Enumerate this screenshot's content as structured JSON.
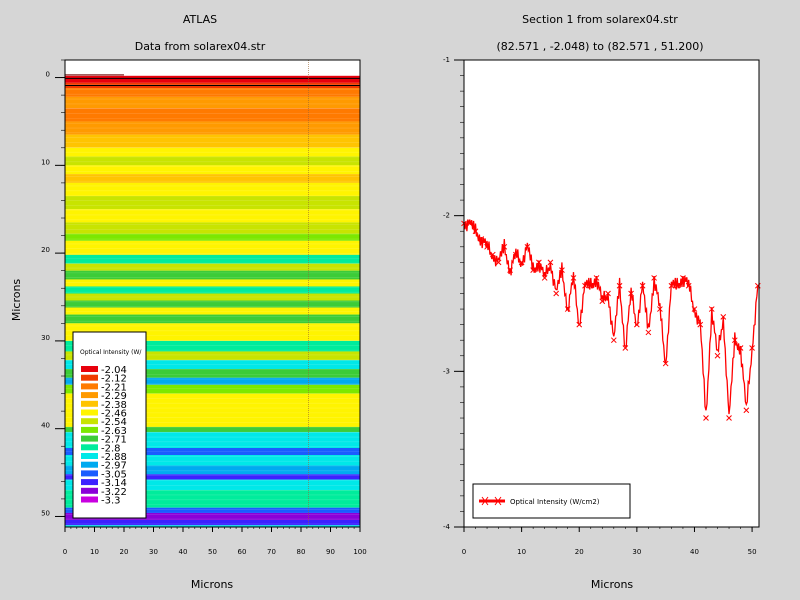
{
  "chart_data": [
    {
      "type": "heatmap",
      "title": "ATLAS",
      "subtitle": "Data from solarex04.str",
      "xlabel": "Microns",
      "ylabel": "Microns",
      "xlim": [
        0,
        100
      ],
      "ylim": [
        51.2,
        -2.0
      ],
      "x_ticks": [
        "0",
        "10",
        "20",
        "30",
        "40",
        "50",
        "60",
        "70",
        "80",
        "90",
        "100"
      ],
      "y_ticks": [
        "0",
        "10",
        "20",
        "30",
        "40",
        "50"
      ],
      "legend": {
        "title": "Optical Intensity (W/",
        "placement": "lower-left",
        "levels": [
          "-2.04",
          "-2.12",
          "-2.21",
          "-2.29",
          "-2.38",
          "-2.46",
          "-2.54",
          "-2.63",
          "-2.71",
          "-2.8",
          "-2.88",
          "-2.97",
          "-3.05",
          "-3.14",
          "-3.22",
          "-3.3"
        ],
        "colors": [
          "#e8000c",
          "#f03a00",
          "#ff7a00",
          "#ff9a00",
          "#ffc400",
          "#fff400",
          "#c8e400",
          "#7ce800",
          "#3ccc38",
          "#00ec9c",
          "#00e8e8",
          "#00aaf0",
          "#1a5cff",
          "#3c20ff",
          "#8a00d8",
          "#c800e0"
        ]
      },
      "bands": [
        {
          "y0": -0.2,
          "y1": 0.6,
          "level": 0
        },
        {
          "y0": 0.6,
          "y1": 1.2,
          "level": 1
        },
        {
          "y0": 1.2,
          "y1": 2.2,
          "level": 2
        },
        {
          "y0": 2.2,
          "y1": 3.5,
          "level": 3
        },
        {
          "y0": 3.5,
          "y1": 5.0,
          "level": 2
        },
        {
          "y0": 5.0,
          "y1": 6.5,
          "level": 3
        },
        {
          "y0": 6.5,
          "y1": 8.0,
          "level": 4
        },
        {
          "y0": 8.0,
          "y1": 9.0,
          "level": 5
        },
        {
          "y0": 9.0,
          "y1": 10.0,
          "level": 6
        },
        {
          "y0": 10.0,
          "y1": 11.0,
          "level": 5
        },
        {
          "y0": 11.0,
          "y1": 12.0,
          "level": 4
        },
        {
          "y0": 12.0,
          "y1": 13.5,
          "level": 5
        },
        {
          "y0": 13.5,
          "y1": 15.0,
          "level": 6
        },
        {
          "y0": 15.0,
          "y1": 16.5,
          "level": 5
        },
        {
          "y0": 16.5,
          "y1": 17.8,
          "level": 6
        },
        {
          "y0": 17.8,
          "y1": 18.6,
          "level": 7
        },
        {
          "y0": 18.6,
          "y1": 20.2,
          "level": 5
        },
        {
          "y0": 20.2,
          "y1": 21.2,
          "level": 9
        },
        {
          "y0": 21.2,
          "y1": 22.0,
          "level": 6
        },
        {
          "y0": 22.0,
          "y1": 23.0,
          "level": 8
        },
        {
          "y0": 23.0,
          "y1": 23.8,
          "level": 5
        },
        {
          "y0": 23.8,
          "y1": 24.6,
          "level": 9
        },
        {
          "y0": 24.6,
          "y1": 25.4,
          "level": 6
        },
        {
          "y0": 25.4,
          "y1": 26.2,
          "level": 8
        },
        {
          "y0": 26.2,
          "y1": 27.0,
          "level": 5
        },
        {
          "y0": 27.0,
          "y1": 28.0,
          "level": 8
        },
        {
          "y0": 28.0,
          "y1": 30.0,
          "level": 5
        },
        {
          "y0": 30.0,
          "y1": 31.2,
          "level": 9
        },
        {
          "y0": 31.2,
          "y1": 32.2,
          "level": 6
        },
        {
          "y0": 32.2,
          "y1": 33.2,
          "level": 10
        },
        {
          "y0": 33.2,
          "y1": 34.2,
          "level": 8
        },
        {
          "y0": 34.2,
          "y1": 35.0,
          "level": 11
        },
        {
          "y0": 35.0,
          "y1": 36.0,
          "level": 7
        },
        {
          "y0": 36.0,
          "y1": 39.8,
          "level": 5
        },
        {
          "y0": 39.8,
          "y1": 40.4,
          "level": 8
        },
        {
          "y0": 40.4,
          "y1": 42.2,
          "level": 10
        },
        {
          "y0": 42.2,
          "y1": 43.0,
          "level": 12
        },
        {
          "y0": 43.0,
          "y1": 44.2,
          "level": 10
        },
        {
          "y0": 44.2,
          "y1": 45.2,
          "level": 11
        },
        {
          "y0": 45.2,
          "y1": 45.8,
          "level": 13
        },
        {
          "y0": 45.8,
          "y1": 47.0,
          "level": 10
        },
        {
          "y0": 47.0,
          "y1": 49.0,
          "level": 9
        },
        {
          "y0": 49.0,
          "y1": 49.6,
          "level": 12
        },
        {
          "y0": 49.6,
          "y1": 50.4,
          "level": 14
        },
        {
          "y0": 50.4,
          "y1": 51.0,
          "level": 13
        },
        {
          "y0": 51.0,
          "y1": 51.2,
          "level": 10
        }
      ],
      "section_x": 82.571
    },
    {
      "type": "line",
      "title": "Section 1 from solarex04.str",
      "subtitle": "(82.571 , -2.048) to (82.571 , 51.200)",
      "xlabel": "Microns",
      "ylabel": "",
      "xlim": [
        0,
        51.2
      ],
      "ylim": [
        -4,
        -1
      ],
      "x_ticks": [
        "0",
        "10",
        "20",
        "30",
        "40",
        "50"
      ],
      "y_ticks": [
        "-1",
        "-2",
        "-3",
        "-4"
      ],
      "series": [
        {
          "name": "Optical Intensity (W/cm2)",
          "color": "#ff0000",
          "x": [
            0,
            1,
            2,
            3,
            4,
            5,
            6,
            7,
            8,
            9,
            10,
            11,
            12,
            13,
            14,
            15,
            16,
            17,
            18,
            19,
            20,
            21,
            22,
            23,
            24,
            25,
            26,
            27,
            28,
            29,
            30,
            31,
            32,
            33,
            34,
            35,
            36,
            37,
            38,
            39,
            40,
            41,
            42,
            43,
            44,
            45,
            46,
            47,
            48,
            49,
            50,
            51
          ],
          "y": [
            -2.05,
            -2.05,
            -2.1,
            -2.15,
            -2.2,
            -2.25,
            -2.3,
            -2.2,
            -2.35,
            -2.25,
            -2.3,
            -2.2,
            -2.35,
            -2.3,
            -2.4,
            -2.3,
            -2.5,
            -2.35,
            -2.6,
            -2.4,
            -2.7,
            -2.45,
            -2.45,
            -2.4,
            -2.55,
            -2.5,
            -2.8,
            -2.45,
            -2.85,
            -2.5,
            -2.7,
            -2.45,
            -2.75,
            -2.4,
            -2.6,
            -2.95,
            -2.45,
            -2.45,
            -2.4,
            -2.45,
            -2.6,
            -2.7,
            -3.3,
            -2.6,
            -2.9,
            -2.65,
            -3.3,
            -2.8,
            -2.85,
            -3.25,
            -2.85,
            -2.45
          ]
        }
      ],
      "legend": {
        "placement": "bottom-left"
      }
    }
  ]
}
